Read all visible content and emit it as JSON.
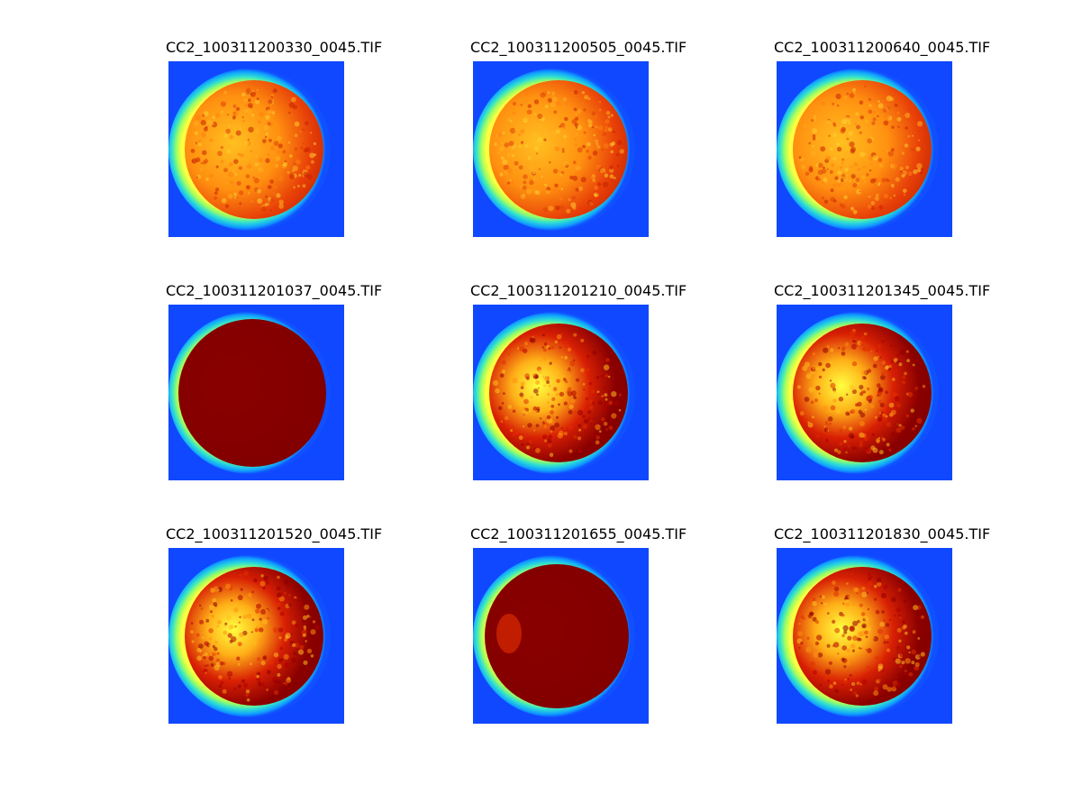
{
  "figure": {
    "colormap": "jet",
    "panels": [
      {
        "title": "CC2_100311200330_0045.TIF",
        "style": "warm-speckle"
      },
      {
        "title": "CC2_100311200505_0045.TIF",
        "style": "warm-speckle"
      },
      {
        "title": "CC2_100311200640_0045.TIF",
        "style": "warm-speckle"
      },
      {
        "title": "CC2_100311201037_0045.TIF",
        "style": "saturated"
      },
      {
        "title": "CC2_100311201210_0045.TIF",
        "style": "dark-right"
      },
      {
        "title": "CC2_100311201345_0045.TIF",
        "style": "dark-right"
      },
      {
        "title": "CC2_100311201520_0045.TIF",
        "style": "dark-right"
      },
      {
        "title": "CC2_100311201655_0045.TIF",
        "style": "mostly-saturated"
      },
      {
        "title": "CC2_100311201830_0045.TIF",
        "style": "dark-right"
      }
    ]
  }
}
